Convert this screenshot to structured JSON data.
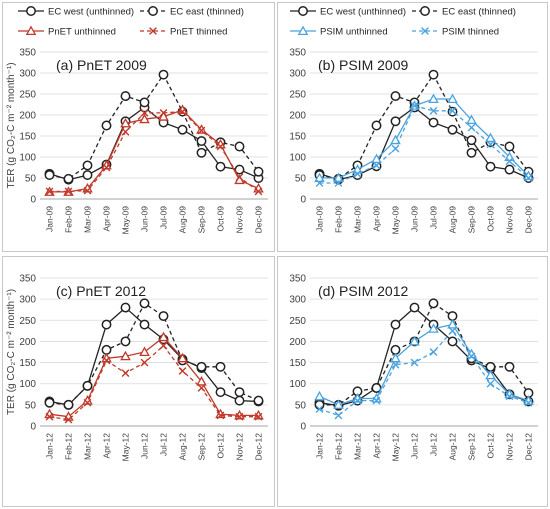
{
  "chart_data": [
    {
      "type": "line",
      "title": "(a) PnET 2009",
      "ylabel": "TER (g CO₂-C m⁻² month⁻¹)",
      "ylim": [
        0,
        350
      ],
      "yticks": [
        0,
        50,
        100,
        150,
        200,
        250,
        300,
        350
      ],
      "categories": [
        "Jan-09",
        "Feb-09",
        "Mar-09",
        "Apr-09",
        "May-09",
        "Jun-09",
        "Jul-09",
        "Aug-09",
        "Sep-09",
        "Oct-09",
        "Nov-09",
        "Dec-09"
      ],
      "grid": true,
      "legend": "top",
      "series": [
        {
          "name": "EC west (unthinned)",
          "color": "#222222",
          "dash": "solid",
          "marker": "circle",
          "values": [
            60,
            46,
            57,
            82,
            185,
            218,
            182,
            165,
            138,
            77,
            70,
            50
          ]
        },
        {
          "name": "EC east (thinned)",
          "color": "#222222",
          "dash": "dashed",
          "marker": "circle",
          "values": [
            57,
            48,
            80,
            175,
            245,
            230,
            296,
            208,
            110,
            135,
            125,
            65
          ]
        },
        {
          "name": "PnET unthinned",
          "color": "#c0392b",
          "dash": "solid",
          "marker": "triangle",
          "values": [
            17,
            17,
            25,
            80,
            180,
            190,
            196,
            212,
            165,
            130,
            45,
            25
          ]
        },
        {
          "name": "PnET thinned",
          "color": "#c0392b",
          "dash": "dashed",
          "marker": "x",
          "values": [
            18,
            18,
            20,
            75,
            160,
            205,
            205,
            208,
            163,
            125,
            52,
            18
          ]
        }
      ]
    },
    {
      "type": "line",
      "title": "(b) PSIM 2009",
      "ylim": [
        0,
        350
      ],
      "yticks": [
        0,
        50,
        100,
        150,
        200,
        250,
        300,
        350
      ],
      "categories": [
        "Jan-09",
        "Feb-09",
        "Mar-09",
        "Apr-09",
        "May-09",
        "Jun-09",
        "Jul-09",
        "Aug-09",
        "Sep-09",
        "Oct-09",
        "Nov-09",
        "Dec-09"
      ],
      "grid": true,
      "legend": "top",
      "series": [
        {
          "name": "EC west (unthinned)",
          "color": "#222222",
          "dash": "solid",
          "marker": "circle",
          "values": [
            60,
            46,
            57,
            78,
            185,
            218,
            182,
            165,
            140,
            77,
            70,
            50
          ]
        },
        {
          "name": "EC east (thinned)",
          "color": "#222222",
          "dash": "dashed",
          "marker": "circle",
          "values": [
            57,
            48,
            80,
            175,
            245,
            230,
            296,
            208,
            110,
            135,
            125,
            65
          ]
        },
        {
          "name": "PSIM unthinned",
          "color": "#4aa3df",
          "dash": "solid",
          "marker": "triangle",
          "values": [
            50,
            50,
            70,
            95,
            140,
            222,
            238,
            238,
            188,
            145,
            100,
            55
          ]
        },
        {
          "name": "PSIM thinned",
          "color": "#4aa3df",
          "dash": "dashed",
          "marker": "x",
          "values": [
            38,
            38,
            60,
            80,
            120,
            222,
            210,
            210,
            170,
            130,
            90,
            50
          ]
        }
      ]
    },
    {
      "type": "line",
      "title": "(c) PnET 2012",
      "ylabel": "TER (g CO₂-C m⁻² month⁻¹)",
      "ylim": [
        0,
        350
      ],
      "yticks": [
        0,
        50,
        100,
        150,
        200,
        250,
        300,
        350
      ],
      "categories": [
        "Jan-12",
        "Feb-12",
        "Mar-12",
        "Apr-12",
        "May-12",
        "Jun-12",
        "Jul-12",
        "Aug-12",
        "Sep-12",
        "Oct-12",
        "Nov-12",
        "Dec-12"
      ],
      "grid": true,
      "legend": "top",
      "series": [
        {
          "name": "EC west (unthinned)",
          "color": "#222222",
          "dash": "solid",
          "marker": "circle",
          "values": [
            58,
            50,
            95,
            240,
            280,
            240,
            205,
            158,
            137,
            80,
            60,
            58
          ]
        },
        {
          "name": "EC east (thinned)",
          "color": "#222222",
          "dash": "dashed",
          "marker": "circle",
          "values": [
            55,
            50,
            95,
            180,
            200,
            290,
            260,
            155,
            140,
            140,
            80,
            60
          ]
        },
        {
          "name": "PnET unthinned",
          "color": "#c0392b",
          "dash": "solid",
          "marker": "triangle",
          "values": [
            28,
            22,
            60,
            160,
            165,
            175,
            210,
            160,
            105,
            28,
            25,
            25
          ]
        },
        {
          "name": "PnET thinned",
          "color": "#c0392b",
          "dash": "dashed",
          "marker": "x",
          "values": [
            22,
            15,
            55,
            155,
            125,
            150,
            190,
            130,
            90,
            25,
            22,
            22
          ]
        }
      ]
    },
    {
      "type": "line",
      "title": "(d) PSIM 2012",
      "ylim": [
        0,
        350
      ],
      "yticks": [
        0,
        50,
        100,
        150,
        200,
        250,
        300,
        350
      ],
      "categories": [
        "Jan-12",
        "Feb-12",
        "Mar-12",
        "Apr-12",
        "May-12",
        "Jun-12",
        "Jul-12",
        "Aug-12",
        "Sep-12",
        "Oct-12",
        "Nov-12",
        "Dec-12"
      ],
      "grid": true,
      "legend": "top",
      "series": [
        {
          "name": "EC west (unthinned)",
          "color": "#222222",
          "dash": "solid",
          "marker": "circle",
          "values": [
            55,
            48,
            60,
            90,
            240,
            280,
            240,
            200,
            155,
            135,
            75,
            58
          ]
        },
        {
          "name": "EC east (thinned)",
          "color": "#222222",
          "dash": "dashed",
          "marker": "circle",
          "values": [
            50,
            50,
            82,
            90,
            180,
            200,
            290,
            260,
            160,
            140,
            140,
            78
          ]
        },
        {
          "name": "PSIM unthinned",
          "color": "#4aa3df",
          "dash": "solid",
          "marker": "triangle",
          "values": [
            70,
            50,
            65,
            65,
            160,
            200,
            230,
            240,
            170,
            120,
            75,
            60
          ]
        },
        {
          "name": "PSIM thinned",
          "color": "#4aa3df",
          "dash": "dashed",
          "marker": "x",
          "values": [
            40,
            25,
            60,
            60,
            145,
            150,
            175,
            225,
            165,
            100,
            70,
            55
          ]
        }
      ]
    }
  ]
}
